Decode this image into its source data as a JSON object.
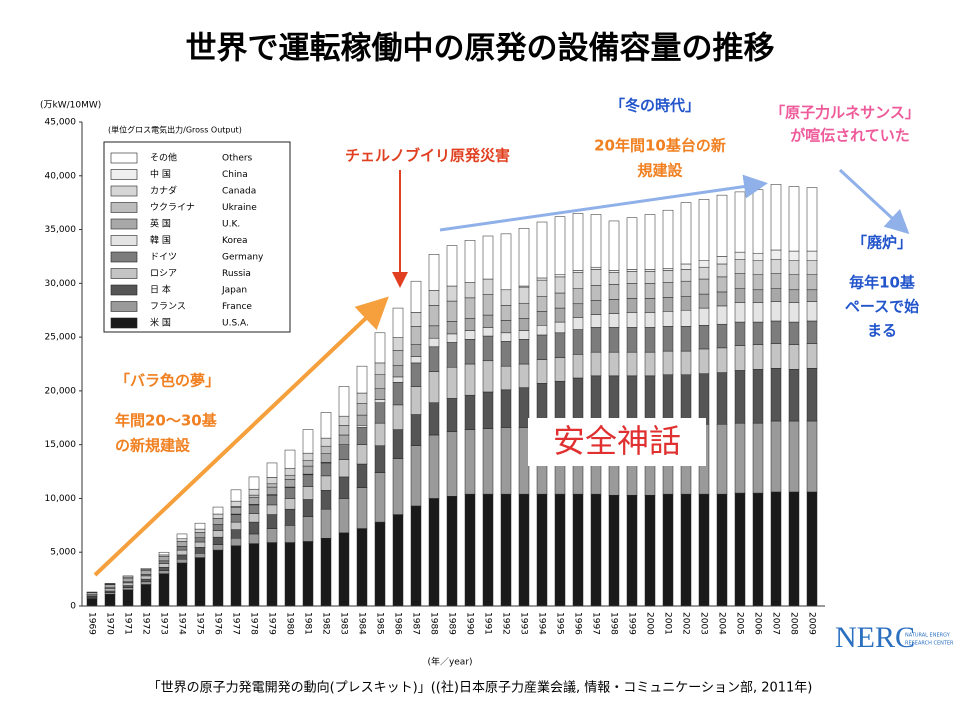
{
  "chart_data": {
    "type": "stacked_bar",
    "title": "世界で運転稼働中の原発の設備容量の推移",
    "y_unit": "(万kW/10MW)",
    "legend_title": "(単位グロス電気出力/Gross Output)",
    "x_label": "(年／year)",
    "source": "「世界の原子力発電開発の動向(プレスキット)」((社)日本原子力産業会議, 情報・コミュニケーション部, 2011年)",
    "annotations": [
      "チェルノブイリ原発災害",
      "「冬の時代」",
      "20年間10基台の新",
      "規建設",
      "「原子力ルネサンス」",
      "が喧伝されていた",
      "「廃炉」",
      "毎年10基",
      "ペースで始",
      "まる",
      "「バラ色の夢」",
      "年間20～30基",
      "の新規建設",
      "安全神話",
      "NERC",
      "NATURAL ENERGY",
      "RESEARCH CENTER"
    ],
    "ylim": [
      0,
      45000
    ],
    "yticks": [
      0,
      {
        "value": 5000,
        "label": "5,000"
      },
      {
        "value": 10000,
        "label": "10,000"
      },
      {
        "value": 15000,
        "label": "15,000"
      },
      {
        "value": 20000,
        "label": "20,000"
      },
      {
        "value": 25000,
        "label": "25,000"
      },
      {
        "value": 30000,
        "label": "30,000"
      },
      {
        "value": 35000,
        "label": "35,000"
      },
      {
        "value": 40000,
        "label": "40,000"
      },
      {
        "value": 45000,
        "label": "45,000"
      }
    ],
    "categories": [
      "1969",
      "1970",
      "1971",
      "1972",
      "1973",
      "1974",
      "1975",
      "1976",
      "1977",
      "1978",
      "1979",
      "1980",
      "1981",
      "1982",
      "1983",
      "1984",
      "1985",
      "1986",
      "1987",
      "1988",
      "1989",
      "1990",
      "1991",
      "1992",
      "1993",
      "1994",
      "1995",
      "1996",
      "1997",
      "1998",
      "1999",
      "2000",
      "2001",
      "2002",
      "2003",
      "2004",
      "2005",
      "2006",
      "2007",
      "2008",
      "2009"
    ],
    "series": [
      {
        "name": "U.S.A.",
        "name_ja": "米 国",
        "color": "#1a1a1a",
        "values": [
          700,
          1100,
          1500,
          2000,
          3000,
          4000,
          4500,
          5200,
          5600,
          5800,
          5900,
          5900,
          6000,
          6300,
          6800,
          7200,
          7800,
          8500,
          9300,
          10000,
          10200,
          10400,
          10400,
          10400,
          10400,
          10400,
          10400,
          10400,
          10400,
          10300,
          10300,
          10300,
          10400,
          10400,
          10400,
          10400,
          10500,
          10500,
          10600,
          10600,
          10600
        ]
      },
      {
        "name": "France",
        "name_ja": "フランス",
        "color": "#9a9a9a",
        "values": [
          100,
          150,
          200,
          250,
          300,
          350,
          400,
          500,
          700,
          900,
          1300,
          1600,
          2300,
          2700,
          3200,
          3800,
          4600,
          5200,
          5600,
          5900,
          6000,
          6000,
          6100,
          6200,
          6200,
          6300,
          6300,
          6400,
          6400,
          6500,
          6500,
          6500,
          6500,
          6500,
          6500,
          6500,
          6500,
          6500,
          6600,
          6600,
          6600
        ]
      },
      {
        "name": "Japan",
        "name_ja": "日 本",
        "color": "#555555",
        "values": [
          100,
          150,
          200,
          250,
          300,
          400,
          550,
          700,
          800,
          1100,
          1300,
          1500,
          1600,
          1750,
          2000,
          2200,
          2500,
          2700,
          2900,
          3000,
          3100,
          3200,
          3400,
          3500,
          3700,
          4000,
          4200,
          4400,
          4600,
          4600,
          4600,
          4600,
          4600,
          4600,
          4700,
          4800,
          4900,
          5000,
          4900,
          4800,
          4900
        ]
      },
      {
        "name": "Russia",
        "name_ja": "ロシア",
        "color": "#c4c4c4",
        "values": [
          100,
          200,
          250,
          300,
          350,
          450,
          500,
          600,
          700,
          800,
          900,
          1000,
          1200,
          1350,
          1600,
          1800,
          2100,
          2300,
          2600,
          2900,
          2900,
          2900,
          2900,
          2200,
          2200,
          2200,
          2200,
          2200,
          2200,
          2200,
          2200,
          2200,
          2200,
          2200,
          2300,
          2300,
          2300,
          2300,
          2300,
          2300,
          2300
        ]
      },
      {
        "name": "Germany",
        "name_ja": "ドイツ",
        "color": "#7c7c7c",
        "values": [
          50,
          100,
          100,
          150,
          250,
          350,
          400,
          600,
          700,
          800,
          900,
          1000,
          1100,
          1200,
          1300,
          1600,
          1900,
          2100,
          2200,
          2300,
          2300,
          2300,
          2300,
          2300,
          2300,
          2300,
          2300,
          2300,
          2300,
          2300,
          2300,
          2300,
          2300,
          2300,
          2200,
          2200,
          2200,
          2100,
          2100,
          2100,
          2100
        ]
      },
      {
        "name": "Korea",
        "name_ja": "韓 国",
        "color": "#e4e4e4",
        "values": [
          0,
          0,
          0,
          0,
          0,
          0,
          0,
          0,
          50,
          60,
          60,
          60,
          60,
          60,
          100,
          200,
          300,
          500,
          600,
          800,
          800,
          800,
          800,
          800,
          800,
          900,
          1000,
          1100,
          1200,
          1300,
          1400,
          1400,
          1400,
          1500,
          1600,
          1700,
          1800,
          1800,
          1800,
          1800,
          1800
        ]
      },
      {
        "name": "U.K.",
        "name_ja": "英 国",
        "color": "#a8a8a8",
        "values": [
          200,
          300,
          350,
          350,
          400,
          450,
          500,
          550,
          600,
          650,
          700,
          700,
          750,
          800,
          900,
          950,
          1000,
          1050,
          1100,
          1150,
          1150,
          1150,
          1150,
          1150,
          1150,
          1300,
          1300,
          1300,
          1300,
          1300,
          1300,
          1300,
          1300,
          1300,
          1300,
          1300,
          1300,
          1200,
          1200,
          1200,
          1100
        ]
      },
      {
        "name": "Ukraine",
        "name_ja": "ウクライナ",
        "color": "#bdbdbd",
        "values": [
          0,
          0,
          0,
          0,
          0,
          0,
          0,
          0,
          100,
          200,
          300,
          400,
          500,
          700,
          900,
          1100,
          1300,
          1400,
          1700,
          1900,
          1900,
          1900,
          1900,
          1400,
          1400,
          1400,
          1400,
          1400,
          1400,
          1400,
          1400,
          1400,
          1400,
          1400,
          1400,
          1400,
          1400,
          1400,
          1400,
          1400,
          1400
        ]
      },
      {
        "name": "Canada",
        "name_ja": "カナダ",
        "color": "#d6d6d6",
        "values": [
          0,
          50,
          100,
          100,
          150,
          250,
          300,
          400,
          500,
          550,
          600,
          650,
          700,
          750,
          850,
          950,
          1100,
          1200,
          1300,
          1400,
          1400,
          1450,
          1450,
          1450,
          1500,
          1500,
          1500,
          1500,
          1500,
          1100,
          1100,
          1100,
          1100,
          1100,
          1100,
          1200,
          1300,
          1300,
          1300,
          1300,
          1300
        ]
      },
      {
        "name": "China",
        "name_ja": "中 国",
        "color": "#efefef",
        "values": [
          0,
          0,
          0,
          0,
          0,
          0,
          0,
          0,
          0,
          0,
          0,
          0,
          0,
          0,
          0,
          0,
          0,
          0,
          0,
          0,
          0,
          0,
          0,
          0,
          100,
          200,
          200,
          200,
          200,
          200,
          200,
          200,
          200,
          500,
          600,
          700,
          700,
          700,
          900,
          900,
          900
        ]
      },
      {
        "name": "Others",
        "name_ja": "その他",
        "color": "#ffffff",
        "values": [
          50,
          50,
          100,
          100,
          250,
          450,
          550,
          650,
          1050,
          1140,
          1340,
          1690,
          2190,
          2390,
          2750,
          2500,
          2800,
          2750,
          2900,
          3350,
          3750,
          3900,
          4000,
          5200,
          5350,
          5200,
          5400,
          5300,
          4900,
          4600,
          4800,
          5100,
          5400,
          5700,
          5700,
          5700,
          5600,
          5900,
          6100,
          6000,
          5900
        ]
      }
    ]
  }
}
